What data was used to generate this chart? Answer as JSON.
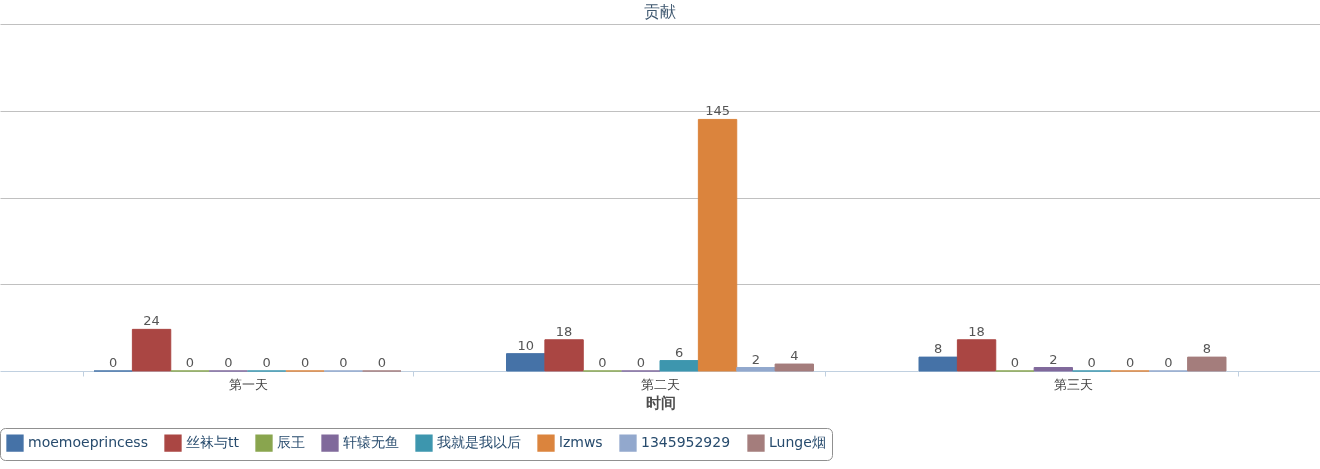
{
  "chart_data": {
    "type": "bar",
    "title": "贡献",
    "xlabel": "时间",
    "categories": [
      "第一天",
      "第二天",
      "第三天"
    ],
    "series": [
      {
        "name": "moemoeprincess",
        "color": "#4572a7",
        "values": [
          0,
          10,
          8
        ]
      },
      {
        "name": "丝袜与tt",
        "color": "#aa4643",
        "values": [
          24,
          18,
          18
        ]
      },
      {
        "name": "辰王",
        "color": "#89a54e",
        "values": [
          0,
          0,
          0
        ]
      },
      {
        "name": "轩辕无鱼",
        "color": "#80699b",
        "values": [
          0,
          0,
          2
        ]
      },
      {
        "name": "我就是我以后",
        "color": "#3d96ae",
        "values": [
          0,
          6,
          0
        ]
      },
      {
        "name": "lzmws",
        "color": "#db843d",
        "values": [
          0,
          145,
          0
        ]
      },
      {
        "name": "1345952929",
        "color": "#92a8cd",
        "values": [
          0,
          2,
          0
        ]
      },
      {
        "name": "Lunge烟",
        "color": "#a47d7c",
        "values": [
          0,
          4,
          8
        ]
      }
    ],
    "ylim": [
      0,
      200
    ],
    "yticks": [
      {
        "value": 50,
        "label": null
      },
      {
        "value": 100,
        "label": null
      },
      {
        "value": 150,
        "label": null
      },
      {
        "value": 200,
        "label": null
      }
    ],
    "tick_labels": "x",
    "grid": "y",
    "legend": "bottom",
    "data_labels": true
  }
}
